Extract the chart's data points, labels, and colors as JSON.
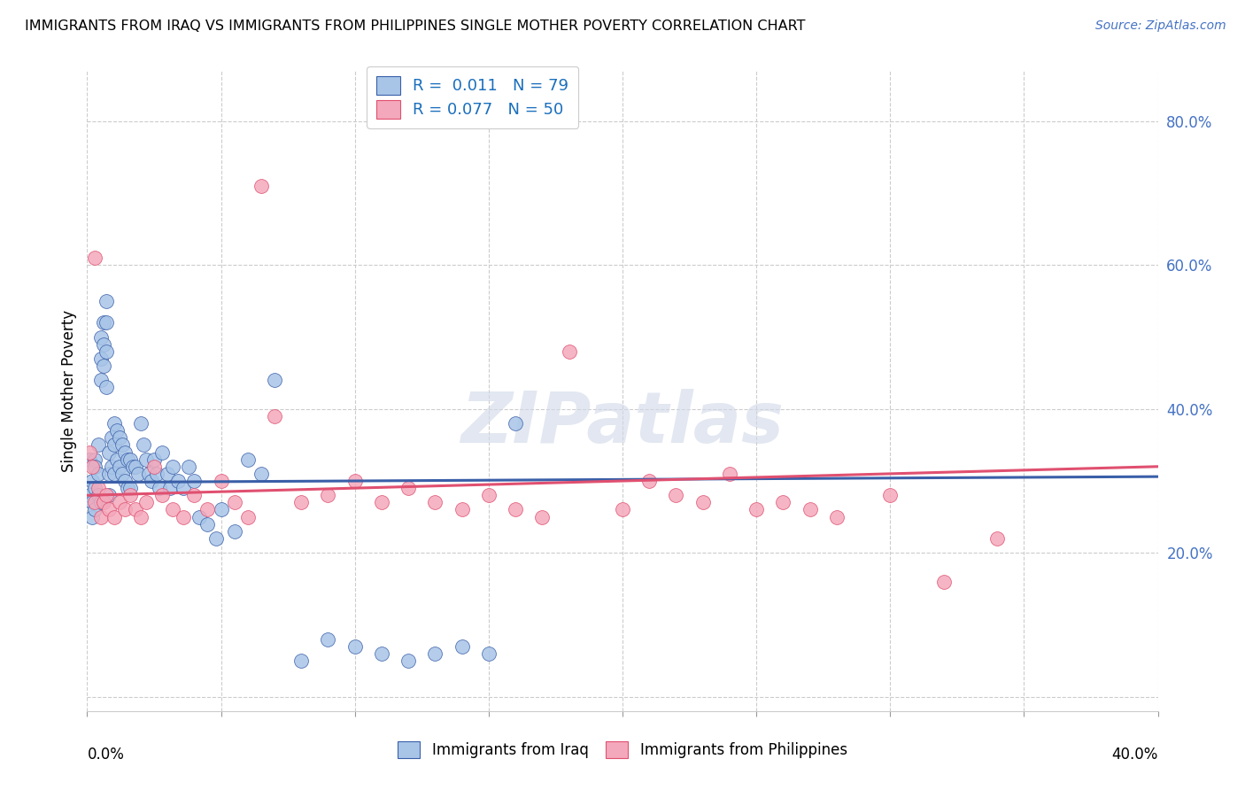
{
  "title": "IMMIGRANTS FROM IRAQ VS IMMIGRANTS FROM PHILIPPINES SINGLE MOTHER POVERTY CORRELATION CHART",
  "source": "Source: ZipAtlas.com",
  "ylabel": "Single Mother Poverty",
  "ylabel_right_ticks": [
    0.0,
    0.2,
    0.4,
    0.6,
    0.8
  ],
  "ylabel_right_labels": [
    "",
    "20.0%",
    "40.0%",
    "60.0%",
    "80.0%"
  ],
  "xlim": [
    0.0,
    0.4
  ],
  "ylim": [
    -0.02,
    0.87
  ],
  "iraq_R": 0.011,
  "iraq_N": 79,
  "philippines_R": 0.077,
  "philippines_N": 50,
  "iraq_color": "#a8c5e8",
  "philippines_color": "#f4a8bb",
  "iraq_trend_color": "#3a5fa8",
  "philippines_trend_color": "#e05070",
  "watermark": "ZIPatlas",
  "iraq_scatter_x": [
    0.001,
    0.001,
    0.002,
    0.002,
    0.002,
    0.003,
    0.003,
    0.003,
    0.003,
    0.004,
    0.004,
    0.004,
    0.005,
    0.005,
    0.005,
    0.005,
    0.006,
    0.006,
    0.006,
    0.007,
    0.007,
    0.007,
    0.007,
    0.008,
    0.008,
    0.008,
    0.009,
    0.009,
    0.01,
    0.01,
    0.01,
    0.011,
    0.011,
    0.012,
    0.012,
    0.013,
    0.013,
    0.014,
    0.014,
    0.015,
    0.015,
    0.016,
    0.016,
    0.017,
    0.018,
    0.019,
    0.02,
    0.021,
    0.022,
    0.023,
    0.024,
    0.025,
    0.026,
    0.027,
    0.028,
    0.03,
    0.031,
    0.032,
    0.034,
    0.036,
    0.038,
    0.04,
    0.042,
    0.045,
    0.048,
    0.05,
    0.055,
    0.06,
    0.065,
    0.07,
    0.08,
    0.09,
    0.1,
    0.11,
    0.12,
    0.13,
    0.14,
    0.15,
    0.16
  ],
  "iraq_scatter_y": [
    0.33,
    0.28,
    0.3,
    0.27,
    0.25,
    0.33,
    0.32,
    0.29,
    0.26,
    0.35,
    0.31,
    0.28,
    0.5,
    0.47,
    0.44,
    0.27,
    0.52,
    0.49,
    0.46,
    0.55,
    0.52,
    0.48,
    0.43,
    0.34,
    0.31,
    0.28,
    0.36,
    0.32,
    0.38,
    0.35,
    0.31,
    0.37,
    0.33,
    0.36,
    0.32,
    0.35,
    0.31,
    0.34,
    0.3,
    0.33,
    0.29,
    0.33,
    0.29,
    0.32,
    0.32,
    0.31,
    0.38,
    0.35,
    0.33,
    0.31,
    0.3,
    0.33,
    0.31,
    0.29,
    0.34,
    0.31,
    0.29,
    0.32,
    0.3,
    0.29,
    0.32,
    0.3,
    0.25,
    0.24,
    0.22,
    0.26,
    0.23,
    0.33,
    0.31,
    0.44,
    0.05,
    0.08,
    0.07,
    0.06,
    0.05,
    0.06,
    0.07,
    0.06,
    0.38
  ],
  "phil_scatter_x": [
    0.001,
    0.002,
    0.003,
    0.003,
    0.004,
    0.005,
    0.006,
    0.007,
    0.008,
    0.01,
    0.012,
    0.014,
    0.016,
    0.018,
    0.02,
    0.022,
    0.025,
    0.028,
    0.032,
    0.036,
    0.04,
    0.045,
    0.05,
    0.055,
    0.06,
    0.065,
    0.07,
    0.08,
    0.09,
    0.1,
    0.11,
    0.12,
    0.13,
    0.14,
    0.15,
    0.16,
    0.17,
    0.18,
    0.2,
    0.21,
    0.22,
    0.23,
    0.24,
    0.25,
    0.26,
    0.27,
    0.28,
    0.3,
    0.32,
    0.34
  ],
  "phil_scatter_y": [
    0.34,
    0.32,
    0.27,
    0.61,
    0.29,
    0.25,
    0.27,
    0.28,
    0.26,
    0.25,
    0.27,
    0.26,
    0.28,
    0.26,
    0.25,
    0.27,
    0.32,
    0.28,
    0.26,
    0.25,
    0.28,
    0.26,
    0.3,
    0.27,
    0.25,
    0.71,
    0.39,
    0.27,
    0.28,
    0.3,
    0.27,
    0.29,
    0.27,
    0.26,
    0.28,
    0.26,
    0.25,
    0.48,
    0.26,
    0.3,
    0.28,
    0.27,
    0.31,
    0.26,
    0.27,
    0.26,
    0.25,
    0.28,
    0.16,
    0.22
  ],
  "iraq_trend_start_x": 0.0,
  "iraq_trend_start_y": 0.298,
  "iraq_trend_end_x": 0.4,
  "iraq_trend_end_y": 0.306,
  "phil_trend_start_x": 0.0,
  "phil_trend_start_y": 0.28,
  "phil_trend_end_x": 0.4,
  "phil_trend_end_y": 0.32
}
